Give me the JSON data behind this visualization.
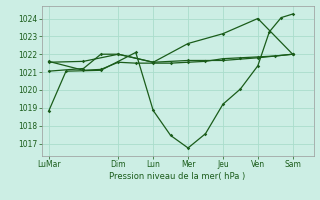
{
  "title": "Pression niveau de la mer( hPa )",
  "background_color": "#cceee4",
  "grid_color": "#aaddcc",
  "line_color": "#1a5c1a",
  "ylim": [
    1016.3,
    1024.7
  ],
  "yticks": [
    1017,
    1018,
    1019,
    1020,
    1021,
    1022,
    1023,
    1024
  ],
  "x_tick_positions": [
    0,
    2,
    3,
    4,
    5,
    6,
    7
  ],
  "x_tick_labels": [
    "LuMar",
    "Dim",
    "Lun",
    "Mer",
    "Jeu",
    "Ven",
    "Sam"
  ],
  "xlim": [
    -0.2,
    7.6
  ],
  "series_main_x": [
    0,
    0.5,
    1.5,
    2.5,
    3.0,
    3.5,
    4.0,
    4.5,
    5.0,
    5.5,
    6.0,
    6.33,
    6.67,
    7.0
  ],
  "series_main_y": [
    1018.8,
    1021.05,
    1021.1,
    1022.1,
    1018.85,
    1017.45,
    1016.75,
    1017.55,
    1019.2,
    1020.05,
    1021.35,
    1023.25,
    1024.05,
    1024.25
  ],
  "series_flat1_x": [
    0,
    1.0,
    1.5,
    2.0,
    2.5,
    3.0,
    3.5,
    4.0,
    4.5,
    5.0,
    5.5,
    6.0,
    6.5,
    7.0
  ],
  "series_flat1_y": [
    1021.6,
    1021.1,
    1021.15,
    1021.55,
    1021.5,
    1021.5,
    1021.5,
    1021.55,
    1021.6,
    1021.75,
    1021.8,
    1021.85,
    1021.9,
    1022.0
  ],
  "series_flat2_x": [
    0,
    1.0,
    1.5,
    2.0,
    3.0,
    4.0,
    5.0,
    6.0,
    7.0
  ],
  "series_flat2_y": [
    1021.05,
    1021.2,
    1022.0,
    1022.0,
    1021.55,
    1021.65,
    1021.65,
    1021.8,
    1022.0
  ],
  "series_rising_x": [
    0,
    1.0,
    2.0,
    3.0,
    4.0,
    5.0,
    6.0,
    7.0
  ],
  "series_rising_y": [
    1021.55,
    1021.6,
    1022.0,
    1021.55,
    1022.6,
    1023.15,
    1024.0,
    1022.0
  ]
}
